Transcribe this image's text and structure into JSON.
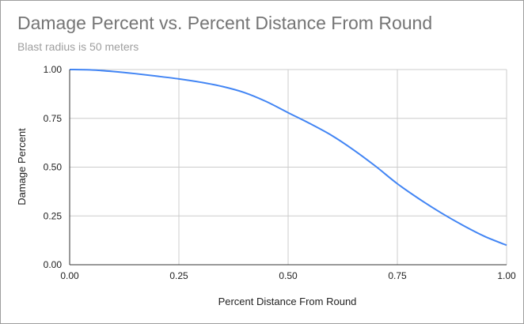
{
  "chart_data": {
    "type": "line",
    "title": "Damage Percent vs. Percent Distance From Round",
    "subtitle": "Blast radius is 50 meters",
    "xlabel": "Percent Distance From Round",
    "ylabel": "Damage Percent",
    "xlim": [
      0,
      1
    ],
    "ylim": [
      0,
      1
    ],
    "xticks": [
      "0.00",
      "0.25",
      "0.50",
      "0.75",
      "1.00"
    ],
    "yticks": [
      "0.00",
      "0.25",
      "0.50",
      "0.75",
      "1.00"
    ],
    "grid": true,
    "legend": "none",
    "series": [
      {
        "color": "#4285f4",
        "x": [
          0.0,
          0.05,
          0.1,
          0.15,
          0.2,
          0.25,
          0.3,
          0.35,
          0.4,
          0.45,
          0.5,
          0.55,
          0.6,
          0.65,
          0.7,
          0.75,
          0.8,
          0.85,
          0.9,
          0.95,
          1.0
        ],
        "y": [
          1.0,
          0.998,
          0.99,
          0.979,
          0.966,
          0.952,
          0.935,
          0.913,
          0.882,
          0.836,
          0.779,
          0.723,
          0.662,
          0.588,
          0.505,
          0.415,
          0.337,
          0.266,
          0.202,
          0.145,
          0.1
        ]
      }
    ]
  }
}
